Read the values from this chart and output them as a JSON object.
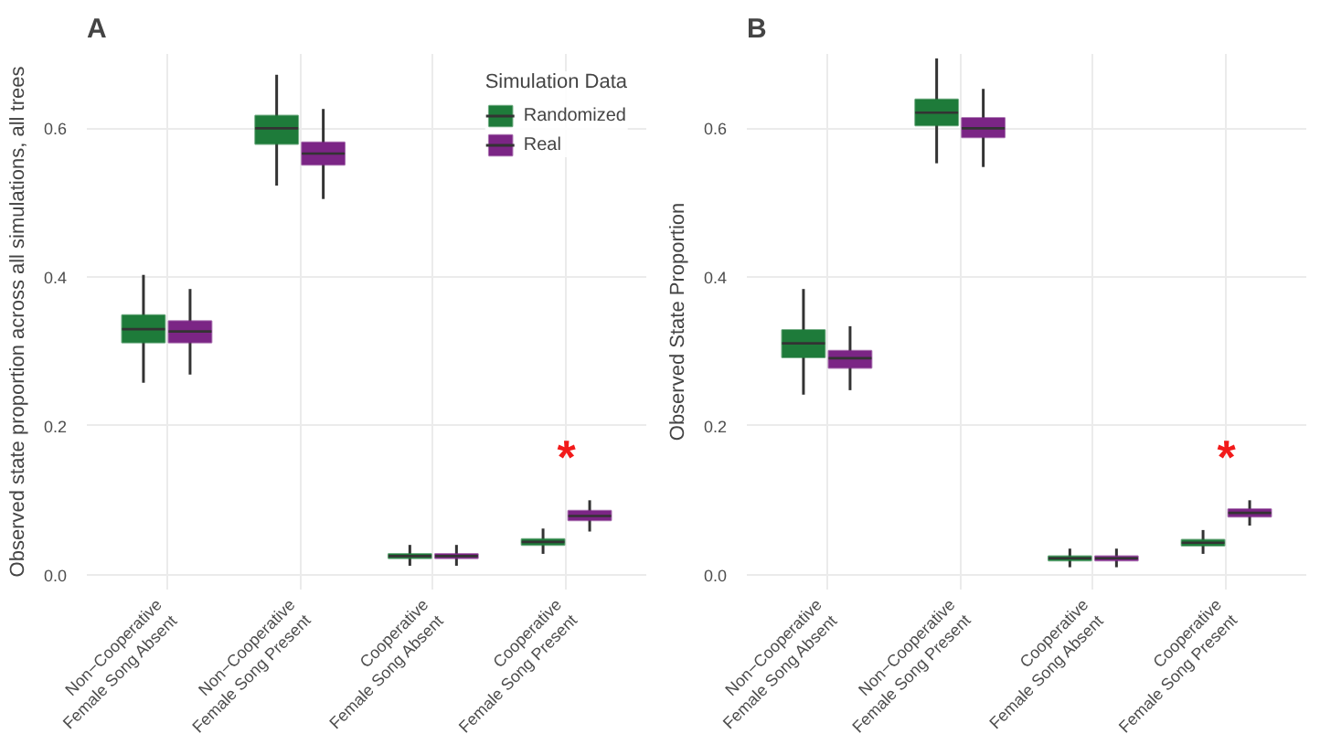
{
  "chart_data": [
    {
      "type": "box",
      "title": "A",
      "ylabel": "Observed state proportion across all simulations, all trees",
      "legend_title": "Simulation Data",
      "legend": "top right",
      "grid": true,
      "categories": [
        "Non−Cooperative\nFemale Song Absent",
        "Non−Cooperative\nFemale Song Present",
        "Cooperative\nFemale Song Absent",
        "Cooperative\nFemale Song Present"
      ],
      "ylim": [
        -0.02,
        0.7
      ],
      "yticks": [
        {
          "value": 0,
          "label": "0.0"
        },
        {
          "value": 0.2,
          "label": "0.2"
        },
        {
          "value": 0.4,
          "label": "0.4"
        },
        {
          "value": 0.6,
          "label": "0.6"
        }
      ],
      "series": [
        {
          "name": "Randomized",
          "color": "#1e7b3a",
          "boxes": [
            {
              "low": 0.258,
              "q1": 0.312,
              "median": 0.33,
              "q3": 0.349,
              "high": 0.403
            },
            {
              "low": 0.523,
              "q1": 0.579,
              "median": 0.6,
              "q3": 0.617,
              "high": 0.672
            },
            {
              "low": 0.012,
              "q1": 0.022,
              "median": 0.025,
              "q3": 0.028,
              "high": 0.04
            },
            {
              "low": 0.028,
              "q1": 0.04,
              "median": 0.044,
              "q3": 0.048,
              "high": 0.062
            }
          ]
        },
        {
          "name": "Real",
          "color": "#7b2585",
          "boxes": [
            {
              "low": 0.269,
              "q1": 0.312,
              "median": 0.327,
              "q3": 0.341,
              "high": 0.384
            },
            {
              "low": 0.505,
              "q1": 0.551,
              "median": 0.566,
              "q3": 0.581,
              "high": 0.626
            },
            {
              "low": 0.012,
              "q1": 0.022,
              "median": 0.025,
              "q3": 0.028,
              "high": 0.04
            },
            {
              "low": 0.058,
              "q1": 0.073,
              "median": 0.079,
              "q3": 0.086,
              "high": 0.1
            }
          ]
        }
      ],
      "annotations": [
        "*"
      ]
    },
    {
      "type": "box",
      "title": "B",
      "ylabel": "Observed State Proportion",
      "grid": true,
      "categories": [
        "Non−Cooperative\nFemale Song Absent",
        "Non−Cooperative\nFemale Song Present",
        "Cooperative\nFemale Song Absent",
        "Cooperative\nFemale Song Present"
      ],
      "ylim": [
        -0.02,
        0.7
      ],
      "yticks": [
        {
          "value": 0,
          "label": "0.0"
        },
        {
          "value": 0.2,
          "label": "0.2"
        },
        {
          "value": 0.4,
          "label": "0.4"
        },
        {
          "value": 0.6,
          "label": "0.6"
        }
      ],
      "series": [
        {
          "color": "#1e7b3a",
          "boxes": [
            {
              "low": 0.242,
              "q1": 0.292,
              "median": 0.311,
              "q3": 0.329,
              "high": 0.384
            },
            {
              "low": 0.553,
              "q1": 0.604,
              "median": 0.621,
              "q3": 0.639,
              "high": 0.694
            },
            {
              "low": 0.01,
              "q1": 0.019,
              "median": 0.022,
              "q3": 0.025,
              "high": 0.035
            },
            {
              "low": 0.028,
              "q1": 0.039,
              "median": 0.043,
              "q3": 0.047,
              "high": 0.06
            }
          ]
        },
        {
          "color": "#7b2585",
          "boxes": [
            {
              "low": 0.248,
              "q1": 0.278,
              "median": 0.291,
              "q3": 0.301,
              "high": 0.334
            },
            {
              "low": 0.548,
              "q1": 0.588,
              "median": 0.6,
              "q3": 0.614,
              "high": 0.653
            },
            {
              "low": 0.01,
              "q1": 0.019,
              "median": 0.022,
              "q3": 0.025,
              "high": 0.035
            },
            {
              "low": 0.066,
              "q1": 0.078,
              "median": 0.083,
              "q3": 0.088,
              "high": 0.1
            }
          ]
        }
      ],
      "annotations": [
        "*"
      ]
    }
  ]
}
